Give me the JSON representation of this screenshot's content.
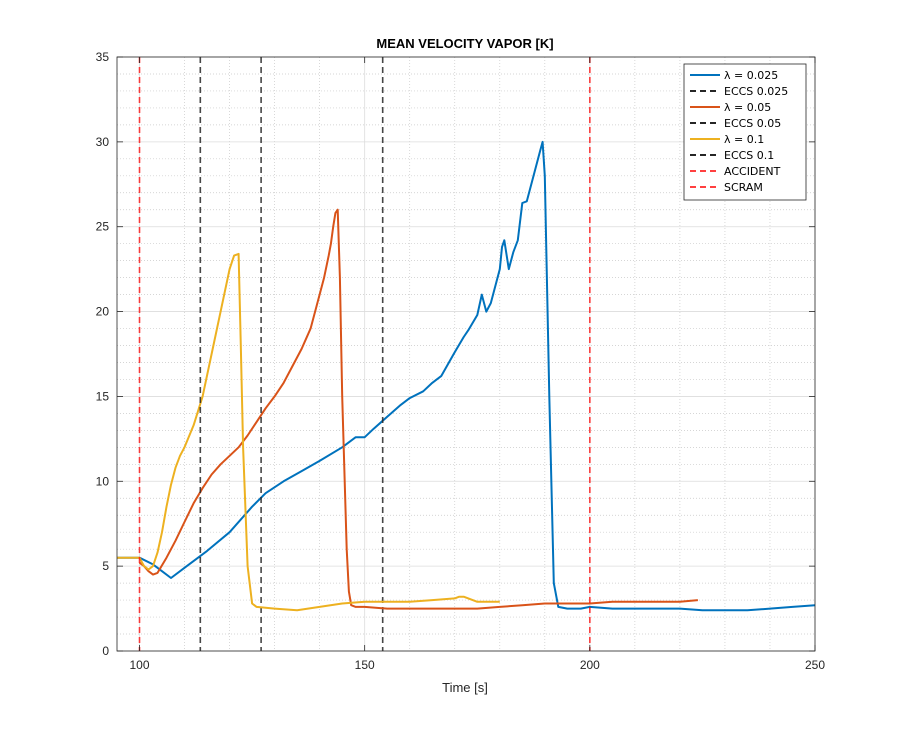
{
  "chart_data": {
    "type": "line",
    "title": "MEAN VELOCITY VAPOR [K]",
    "xlabel": "Time [s]",
    "ylabel": "",
    "xlim": [
      95,
      250
    ],
    "ylim": [
      0,
      35
    ],
    "xticks": [
      100,
      150,
      200,
      250
    ],
    "yticks": [
      0,
      5,
      10,
      15,
      20,
      25,
      30,
      35
    ],
    "grid": "on (major and minor dotted)",
    "legend_position": "top-right",
    "series": [
      {
        "name": "λ = 0.025",
        "color": "#0072BD",
        "style": "solid",
        "x": [
          95,
          100,
          103,
          105,
          107,
          110,
          115,
          120,
          125,
          128,
          132,
          136,
          140,
          145,
          148,
          150,
          152,
          155,
          158,
          160,
          163,
          165,
          167,
          170,
          172,
          173,
          175,
          176,
          177,
          178,
          180,
          180.5,
          181,
          182,
          183,
          184,
          185,
          186,
          187,
          188,
          189,
          189.5,
          190,
          191,
          192,
          193,
          195,
          198,
          200,
          205,
          210,
          215,
          220,
          225,
          230,
          235,
          240,
          245,
          250
        ],
        "y": [
          5.5,
          5.5,
          5.1,
          4.7,
          4.3,
          4.9,
          5.9,
          7.0,
          8.5,
          9.3,
          10.0,
          10.6,
          11.2,
          12.0,
          12.6,
          12.6,
          13.1,
          13.8,
          14.5,
          14.9,
          15.3,
          15.8,
          16.2,
          17.6,
          18.5,
          18.9,
          19.8,
          21.0,
          20.0,
          20.5,
          22.5,
          23.8,
          24.2,
          22.5,
          23.5,
          24.2,
          26.4,
          26.5,
          27.5,
          28.5,
          29.5,
          30.0,
          28.0,
          15.0,
          4.0,
          2.6,
          2.5,
          2.5,
          2.6,
          2.5,
          2.5,
          2.5,
          2.5,
          2.4,
          2.4,
          2.4,
          2.5,
          2.6,
          2.7
        ]
      },
      {
        "name": "ECCS 0.025",
        "color": "#262626",
        "style": "dashed",
        "vline_x": 154
      },
      {
        "name": "λ = 0.05",
        "color": "#D95319",
        "style": "solid",
        "x": [
          100,
          101,
          102,
          103,
          104,
          106,
          108,
          110,
          112,
          114,
          116,
          118,
          120,
          122,
          124,
          126,
          128,
          130,
          132,
          134,
          136,
          137,
          138,
          139,
          140,
          141,
          142,
          142.5,
          143,
          143.5,
          144,
          144.5,
          145,
          146,
          146.5,
          147,
          148,
          150,
          155,
          160,
          165,
          170,
          175,
          180,
          185,
          190,
          195,
          200,
          205,
          210,
          215,
          220,
          224
        ],
        "y": [
          5.2,
          5.0,
          4.7,
          4.5,
          4.6,
          5.5,
          6.5,
          7.6,
          8.7,
          9.6,
          10.4,
          11.0,
          11.5,
          12.0,
          12.7,
          13.5,
          14.3,
          15.0,
          15.8,
          16.8,
          17.8,
          18.4,
          19.0,
          20.0,
          21.0,
          22.0,
          23.3,
          24.0,
          25.0,
          25.8,
          26.0,
          22.0,
          15.0,
          6.0,
          3.5,
          2.7,
          2.6,
          2.6,
          2.5,
          2.5,
          2.5,
          2.5,
          2.5,
          2.6,
          2.7,
          2.8,
          2.8,
          2.8,
          2.9,
          2.9,
          2.9,
          2.9,
          3.0
        ]
      },
      {
        "name": "ECCS 0.05",
        "color": "#262626",
        "style": "dashed",
        "vline_x": 127
      },
      {
        "name": "λ = 0.1",
        "color": "#EDB120",
        "style": "solid",
        "x": [
          95,
          100,
          101,
          102,
          103,
          104,
          105,
          106,
          107,
          108,
          109,
          110,
          112,
          114,
          116,
          118,
          120,
          121,
          122,
          122.5,
          123,
          124,
          125,
          126,
          130,
          135,
          140,
          145,
          150,
          155,
          160,
          165,
          170,
          171,
          172,
          175,
          180
        ],
        "y": [
          5.5,
          5.5,
          5.0,
          4.8,
          5.0,
          5.8,
          7.0,
          8.5,
          9.8,
          10.8,
          11.5,
          12.0,
          13.3,
          15.0,
          17.5,
          20.0,
          22.5,
          23.3,
          23.4,
          18.0,
          12.0,
          5.0,
          2.8,
          2.6,
          2.5,
          2.4,
          2.6,
          2.8,
          2.9,
          2.9,
          2.9,
          3.0,
          3.1,
          3.2,
          3.2,
          2.9,
          2.9
        ]
      },
      {
        "name": "ECCS 0.1",
        "color": "#262626",
        "style": "dashed",
        "vline_x": 113.5
      },
      {
        "name": "ACCIDENT",
        "color": "#FF0000",
        "style": "dashed",
        "vline_x": 100
      },
      {
        "name": "SCRAM",
        "color": "#FF0000",
        "style": "dashed",
        "vline_x": 200
      }
    ]
  }
}
